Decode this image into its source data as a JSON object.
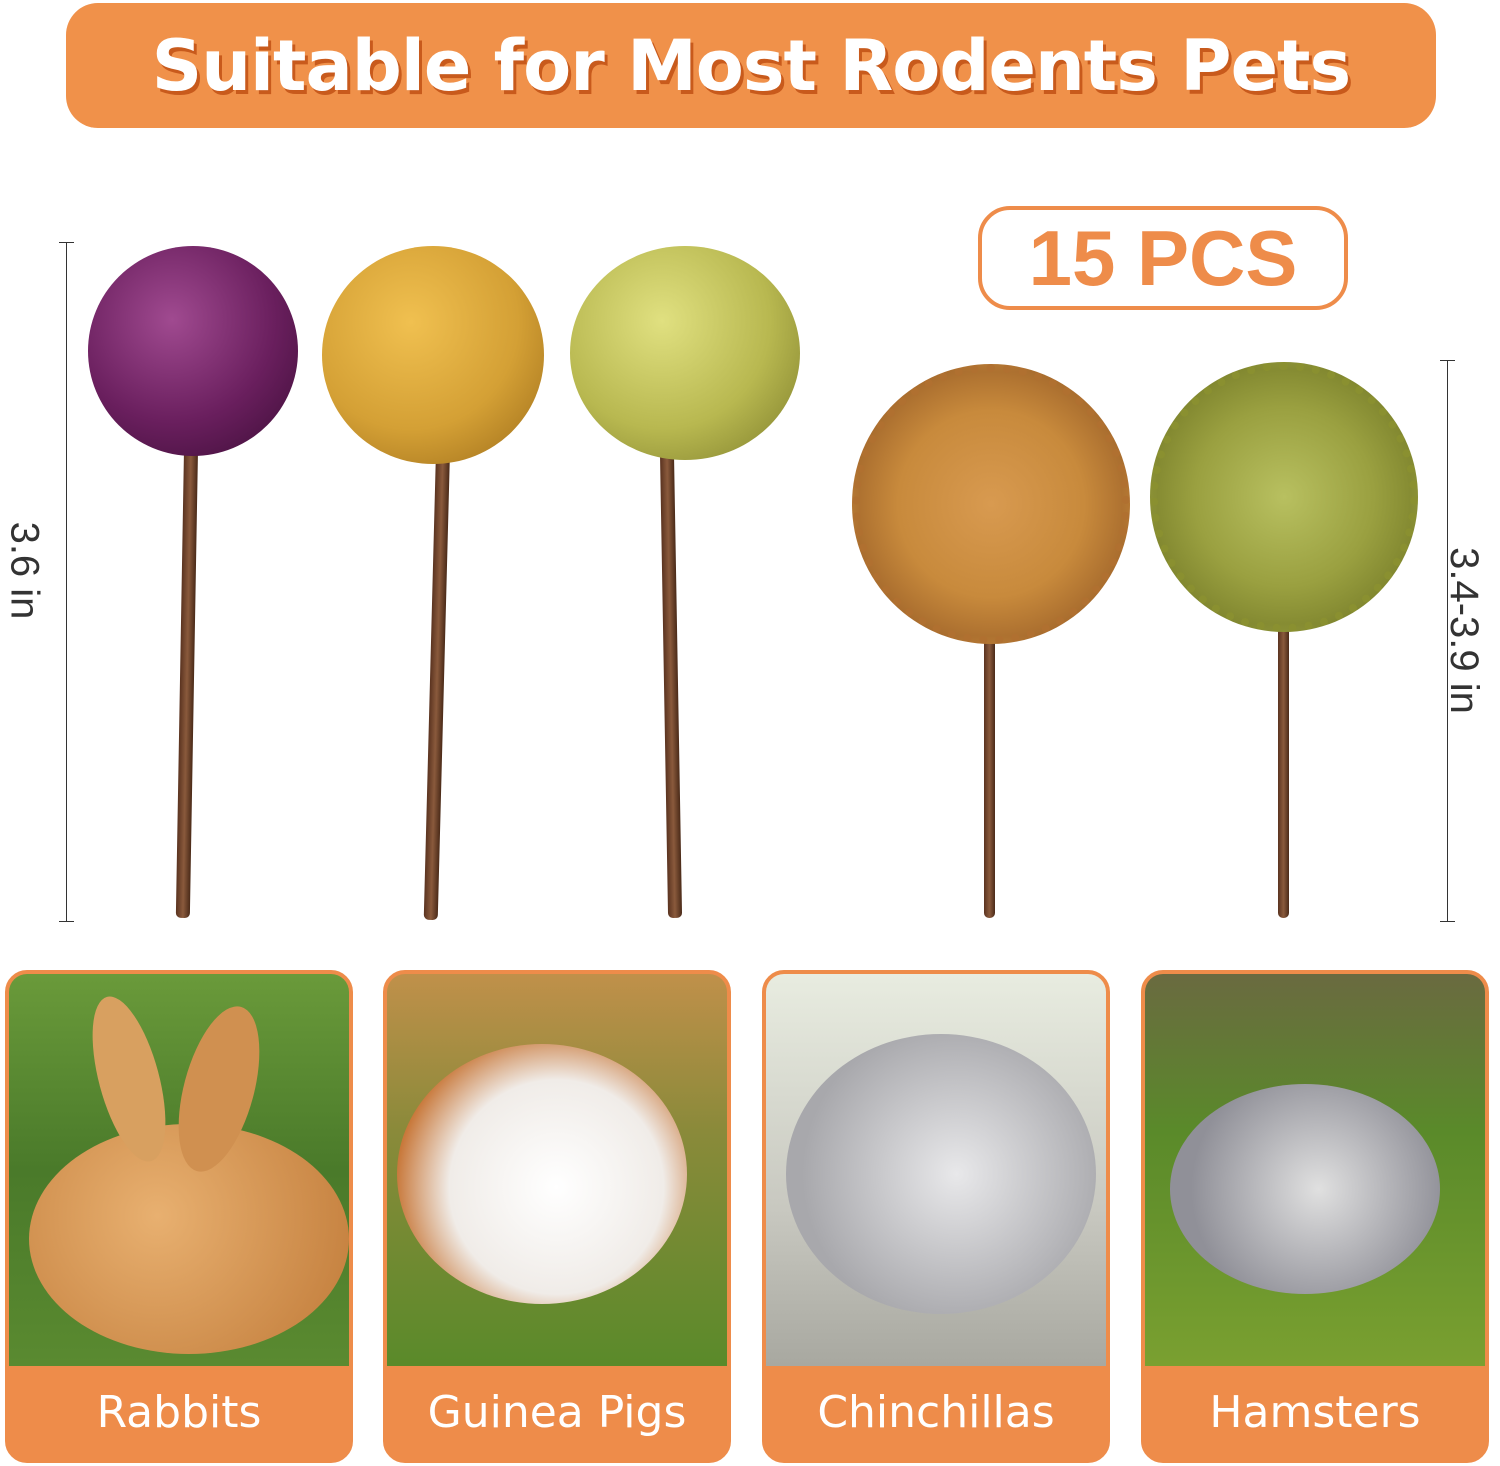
{
  "banner": {
    "title": "Suitable for Most Rodents Pets"
  },
  "count_badge": {
    "text": "15 PCS"
  },
  "dimensions": {
    "ball_sticks": "3.6 in",
    "flower_sticks": "3.4-3.9 in"
  },
  "products": [
    {
      "shape": "ball",
      "color": "#6a1f5e"
    },
    {
      "shape": "ball",
      "color": "#d4a035"
    },
    {
      "shape": "ball",
      "color": "#b8b850"
    },
    {
      "shape": "flower",
      "color": "#c88a3c"
    },
    {
      "shape": "flower",
      "color": "#9aa040"
    }
  ],
  "animals": [
    {
      "label": "Rabbits"
    },
    {
      "label": "Guinea Pigs"
    },
    {
      "label": "Chinchillas"
    },
    {
      "label": "Hamsters"
    }
  ],
  "colors": {
    "accent": "#ee8c4a",
    "shadow": "#c85a1c"
  }
}
